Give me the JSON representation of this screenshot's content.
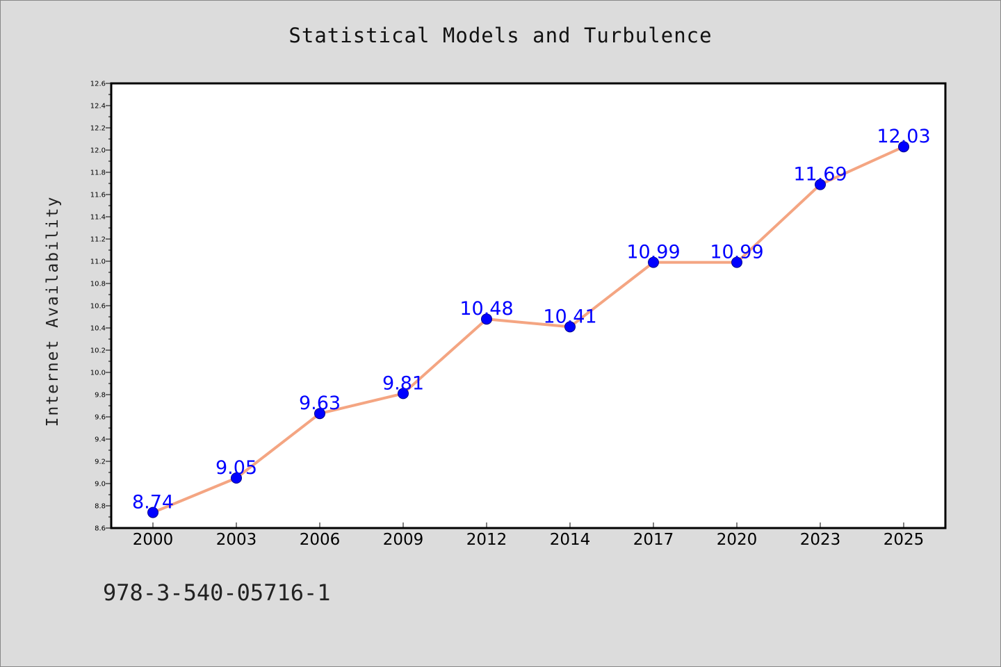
{
  "chart_data": {
    "type": "line",
    "title": "Statistical Models and Turbulence",
    "ylabel": "Internet Availability",
    "xlabel": "",
    "categories": [
      "2000",
      "2003",
      "2006",
      "2009",
      "2012",
      "2014",
      "2017",
      "2020",
      "2023",
      "2025"
    ],
    "values": [
      8.74,
      9.05,
      9.63,
      9.81,
      10.48,
      10.41,
      10.99,
      10.99,
      11.69,
      12.03
    ],
    "data_labels": [
      "8.74",
      "9.05",
      "9.63",
      "9.81",
      "10.48",
      "10.41",
      "10.99",
      "10.99",
      "11.69",
      "12.03"
    ],
    "ylim": [
      8.6,
      12.6
    ],
    "yticks": [
      "8.6",
      "8.8",
      "9.0",
      "9.2",
      "9.4",
      "9.6",
      "9.8",
      "10.0",
      "10.2",
      "10.4",
      "10.6",
      "10.8",
      "11.0",
      "11.2",
      "11.4",
      "11.6",
      "11.8",
      "12.0",
      "12.2",
      "12.4",
      "12.6"
    ],
    "grid": false,
    "line_color": "#f4a582",
    "marker_color": "#0000ff",
    "label_color": "#0000ff",
    "plot_background": "#ffffff",
    "figure_background": "#dcdcdc"
  },
  "footer": {
    "code": "978-3-540-05716-1"
  }
}
